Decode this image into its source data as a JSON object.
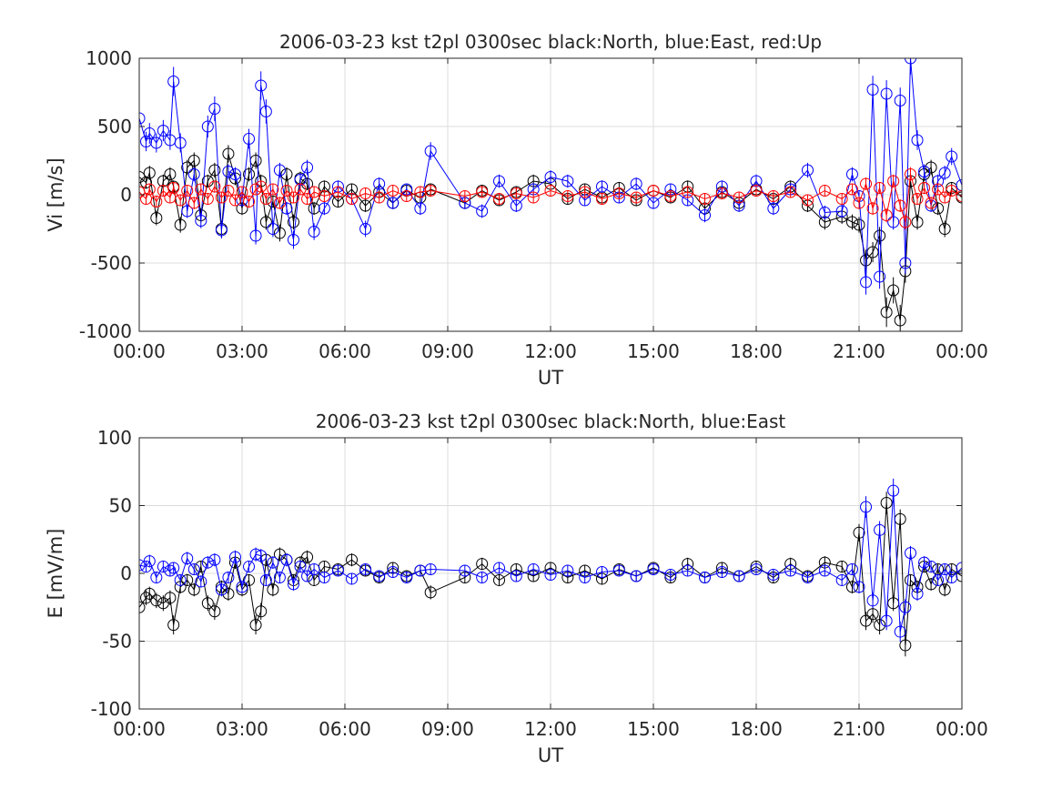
{
  "chart_data": [
    {
      "type": "scatter",
      "title": "2006-03-23 kst t2pl 0300sec black:North, blue:East, red:Up",
      "xlabel": "UT",
      "ylabel": "Vi [m/s]",
      "ylim": [
        -1000,
        1000
      ],
      "yticks": [
        "1000",
        "500",
        "0",
        "-500",
        "-1000"
      ],
      "xlim_hours": [
        0,
        24
      ],
      "xticks": [
        "00:00",
        "03:00",
        "06:00",
        "09:00",
        "12:00",
        "15:00",
        "18:00",
        "21:00",
        "00:00"
      ],
      "grid": true,
      "legend": "none",
      "series": [
        {
          "color": "#000000",
          "marker": "circle",
          "error_bars": true,
          "x": [
            0.0,
            0.2,
            0.3,
            0.5,
            0.7,
            0.9,
            1.0,
            1.2,
            1.4,
            1.6,
            1.8,
            2.0,
            2.2,
            2.4,
            2.6,
            2.8,
            3.0,
            3.2,
            3.4,
            3.55,
            3.7,
            3.9,
            4.1,
            4.3,
            4.5,
            4.7,
            4.9,
            5.1,
            5.4,
            5.8,
            6.2,
            6.6,
            7.0,
            7.4,
            7.8,
            8.2,
            8.5,
            9.5,
            10.0,
            10.5,
            11.0,
            11.5,
            12.0,
            12.5,
            13.0,
            13.5,
            14.0,
            14.5,
            15.0,
            15.5,
            16.0,
            16.5,
            17.0,
            17.5,
            18.0,
            18.5,
            19.0,
            19.5,
            20.0,
            20.5,
            20.8,
            21.0,
            21.2,
            21.4,
            21.6,
            21.8,
            22.0,
            22.2,
            22.35,
            22.5,
            22.7,
            22.9,
            23.1,
            23.3,
            23.5,
            23.7,
            24.0
          ],
          "y": [
            130,
            90,
            160,
            -170,
            100,
            150,
            60,
            -220,
            200,
            250,
            -150,
            100,
            180,
            -250,
            300,
            120,
            -100,
            150,
            250,
            100,
            -200,
            -50,
            -280,
            150,
            -200,
            120,
            80,
            -100,
            60,
            -50,
            40,
            -80,
            20,
            -60,
            30,
            -20,
            40,
            -60,
            30,
            -40,
            20,
            100,
            80,
            -30,
            40,
            -20,
            50,
            -40,
            30,
            -20,
            60,
            -100,
            20,
            -60,
            40,
            -30,
            60,
            -80,
            -200,
            -160,
            -200,
            -220,
            -480,
            -420,
            -300,
            -860,
            -700,
            -920,
            -560,
            100,
            -200,
            150,
            200,
            -100,
            -250,
            50,
            -20
          ]
        },
        {
          "color": "#0000ff",
          "marker": "circle",
          "error_bars": true,
          "x": [
            0.0,
            0.2,
            0.3,
            0.5,
            0.7,
            0.9,
            1.0,
            1.2,
            1.4,
            1.6,
            1.8,
            2.0,
            2.2,
            2.4,
            2.6,
            2.8,
            3.0,
            3.2,
            3.4,
            3.55,
            3.7,
            3.9,
            4.1,
            4.3,
            4.5,
            4.7,
            4.9,
            5.1,
            5.4,
            5.8,
            6.2,
            6.6,
            7.0,
            7.4,
            7.8,
            8.2,
            8.5,
            9.5,
            10.0,
            10.5,
            11.0,
            11.5,
            12.0,
            12.5,
            13.0,
            13.5,
            14.0,
            14.5,
            15.0,
            15.5,
            16.0,
            16.5,
            17.0,
            17.5,
            18.0,
            18.5,
            19.0,
            19.5,
            20.0,
            20.5,
            20.8,
            21.0,
            21.2,
            21.4,
            21.6,
            21.8,
            22.0,
            22.2,
            22.35,
            22.5,
            22.7,
            22.9,
            23.1,
            23.3,
            23.5,
            23.7,
            24.0
          ],
          "y": [
            560,
            390,
            450,
            380,
            470,
            400,
            830,
            380,
            -120,
            150,
            -190,
            500,
            630,
            -260,
            170,
            150,
            -40,
            410,
            -300,
            800,
            610,
            -250,
            180,
            -100,
            -330,
            110,
            200,
            -270,
            -100,
            60,
            -30,
            -250,
            80,
            -60,
            40,
            -100,
            320,
            -60,
            -120,
            100,
            -80,
            40,
            130,
            100,
            -40,
            60,
            -20,
            80,
            -60,
            40,
            -40,
            -150,
            60,
            -80,
            100,
            -100,
            40,
            180,
            -130,
            -120,
            150,
            -10,
            -640,
            770,
            -600,
            740,
            -200,
            690,
            -500,
            1000,
            400,
            170,
            -80,
            100,
            160,
            280,
            70
          ]
        },
        {
          "color": "#ff0000",
          "marker": "circle",
          "error_bars": true,
          "x": [
            0.0,
            0.2,
            0.3,
            0.5,
            0.7,
            0.9,
            1.0,
            1.2,
            1.4,
            1.6,
            1.8,
            2.0,
            2.2,
            2.4,
            2.6,
            2.8,
            3.0,
            3.2,
            3.4,
            3.55,
            3.7,
            3.9,
            4.1,
            4.3,
            4.5,
            4.7,
            4.9,
            5.1,
            5.4,
            5.8,
            6.2,
            6.6,
            7.0,
            7.4,
            7.8,
            8.2,
            8.5,
            9.5,
            10.0,
            10.5,
            11.0,
            11.5,
            12.0,
            12.5,
            13.0,
            13.5,
            14.0,
            14.5,
            15.0,
            15.5,
            16.0,
            16.5,
            17.0,
            17.5,
            18.0,
            18.5,
            19.0,
            19.5,
            20.0,
            20.5,
            20.8,
            21.0,
            21.2,
            21.4,
            21.6,
            21.8,
            22.0,
            22.2,
            22.35,
            22.5,
            22.7,
            22.9,
            23.1,
            23.3,
            23.5,
            23.7,
            24.0
          ],
          "y": [
            20,
            -30,
            40,
            -50,
            30,
            -20,
            50,
            -40,
            30,
            -60,
            40,
            -30,
            60,
            -20,
            30,
            -40,
            20,
            -50,
            40,
            60,
            -30,
            40,
            -60,
            30,
            -20,
            40,
            -30,
            20,
            -10,
            20,
            -30,
            10,
            -20,
            30,
            -10,
            20,
            30,
            -10,
            20,
            -30,
            10,
            -20,
            30,
            -10,
            20,
            -30,
            10,
            -20,
            30,
            -10,
            20,
            -30,
            10,
            -20,
            30,
            -10,
            20,
            -40,
            30,
            -30,
            40,
            -60,
            80,
            -100,
            50,
            -150,
            100,
            -80,
            -200,
            150,
            -30,
            50,
            -60,
            40,
            -20,
            30,
            -10
          ]
        }
      ]
    },
    {
      "type": "scatter",
      "title": "2006-03-23 kst t2pl 0300sec black:North, blue:East",
      "xlabel": "UT",
      "ylabel": "E [mV/m]",
      "ylim": [
        -100,
        100
      ],
      "yticks": [
        "100",
        "50",
        "0",
        "-50",
        "-100"
      ],
      "xlim_hours": [
        0,
        24
      ],
      "xticks": [
        "00:00",
        "03:00",
        "06:00",
        "09:00",
        "12:00",
        "15:00",
        "18:00",
        "21:00",
        "00:00"
      ],
      "grid": true,
      "legend": "none",
      "series": [
        {
          "color": "#000000",
          "marker": "circle",
          "error_bars": true,
          "x": [
            0.0,
            0.2,
            0.3,
            0.5,
            0.7,
            0.9,
            1.0,
            1.2,
            1.4,
            1.6,
            1.8,
            2.0,
            2.2,
            2.4,
            2.6,
            2.8,
            3.0,
            3.2,
            3.4,
            3.55,
            3.7,
            3.9,
            4.1,
            4.3,
            4.5,
            4.7,
            4.9,
            5.1,
            5.4,
            5.8,
            6.2,
            6.6,
            7.0,
            7.4,
            7.8,
            8.2,
            8.5,
            9.5,
            10.0,
            10.5,
            11.0,
            11.5,
            12.0,
            12.5,
            13.0,
            13.5,
            14.0,
            14.5,
            15.0,
            15.5,
            16.0,
            16.5,
            17.0,
            17.5,
            18.0,
            18.5,
            19.0,
            19.5,
            20.0,
            20.5,
            20.8,
            21.0,
            21.2,
            21.4,
            21.6,
            21.8,
            22.0,
            22.2,
            22.35,
            22.5,
            22.7,
            22.9,
            23.1,
            23.3,
            23.5,
            23.7,
            24.0
          ],
          "y": [
            -25,
            -18,
            -15,
            -20,
            -22,
            -18,
            -38,
            -10,
            -5,
            -12,
            5,
            -22,
            -28,
            -10,
            -15,
            8,
            -12,
            -5,
            -38,
            -28,
            10,
            -12,
            14,
            10,
            -5,
            8,
            12,
            -5,
            5,
            3,
            10,
            2,
            -3,
            4,
            -2,
            2,
            -14,
            -3,
            7,
            -5,
            3,
            -2,
            4,
            -3,
            2,
            -4,
            3,
            -2,
            4,
            -3,
            7,
            -3,
            4,
            -2,
            5,
            -3,
            7,
            -2,
            8,
            5,
            -10,
            30,
            -35,
            -30,
            -38,
            52,
            -22,
            40,
            -53,
            -5,
            -10,
            5,
            -8,
            3,
            -12,
            3,
            -2
          ]
        },
        {
          "color": "#0000ff",
          "marker": "circle",
          "error_bars": true,
          "x": [
            0.0,
            0.2,
            0.3,
            0.5,
            0.7,
            0.9,
            1.0,
            1.2,
            1.4,
            1.6,
            1.8,
            2.0,
            2.2,
            2.4,
            2.6,
            2.8,
            3.0,
            3.2,
            3.4,
            3.55,
            3.7,
            3.9,
            4.1,
            4.3,
            4.5,
            4.7,
            4.9,
            5.1,
            5.4,
            5.8,
            6.2,
            6.6,
            7.0,
            7.4,
            7.8,
            8.2,
            8.5,
            9.5,
            10.0,
            10.5,
            11.0,
            11.5,
            12.0,
            12.5,
            13.0,
            13.5,
            14.0,
            14.5,
            15.0,
            15.5,
            16.0,
            16.5,
            17.0,
            17.5,
            18.0,
            18.5,
            19.0,
            19.5,
            20.0,
            20.5,
            20.8,
            21.0,
            21.2,
            21.4,
            21.6,
            21.8,
            22.0,
            22.2,
            22.35,
            22.5,
            22.7,
            22.9,
            23.1,
            23.3,
            23.5,
            23.7,
            24.0
          ],
          "y": [
            6,
            5,
            9,
            -3,
            5,
            2,
            4,
            -5,
            11,
            3,
            -6,
            8,
            10,
            -12,
            -3,
            12,
            -10,
            5,
            14,
            13,
            -5,
            8,
            -3,
            10,
            -8,
            5,
            -2,
            3,
            -3,
            2,
            -4,
            3,
            -2,
            1,
            -3,
            2,
            3,
            2,
            -3,
            4,
            -2,
            3,
            -1,
            2,
            -3,
            1,
            2,
            -2,
            3,
            -1,
            2,
            -3,
            1,
            -2,
            3,
            -1,
            2,
            -3,
            2,
            -5,
            3,
            -10,
            49,
            -20,
            32,
            -35,
            61,
            -43,
            -25,
            15,
            -15,
            8,
            5,
            -5,
            3,
            -3,
            4
          ]
        }
      ]
    }
  ]
}
